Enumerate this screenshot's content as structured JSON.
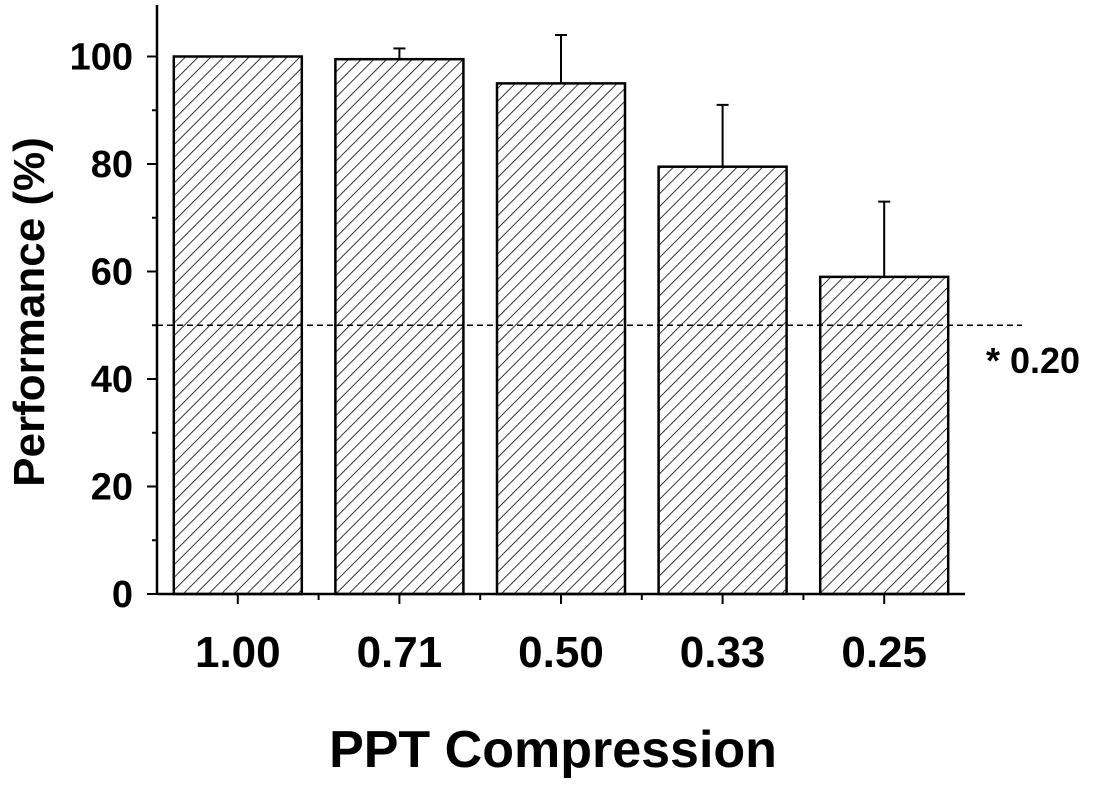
{
  "chart_data": {
    "type": "bar",
    "title": "",
    "xlabel": "PPT Compression",
    "ylabel": "Performance (%)",
    "categories": [
      "1.00",
      "0.71",
      "0.50",
      "0.33",
      "0.25"
    ],
    "values": [
      100,
      99.5,
      95,
      79.5,
      59
    ],
    "error_upper": [
      0,
      2,
      9,
      11.5,
      14
    ],
    "ylim": [
      0,
      110
    ],
    "yticks": [
      "0",
      "20",
      "40",
      "60",
      "80",
      "100"
    ],
    "ytick_values": [
      0,
      20,
      40,
      60,
      80,
      100
    ],
    "bar_fill": "hatched",
    "bar_color": "#000000",
    "grid": false,
    "legend": "none",
    "reference_line": {
      "y": 50,
      "style": "dashed",
      "label": "* 0.20"
    }
  }
}
